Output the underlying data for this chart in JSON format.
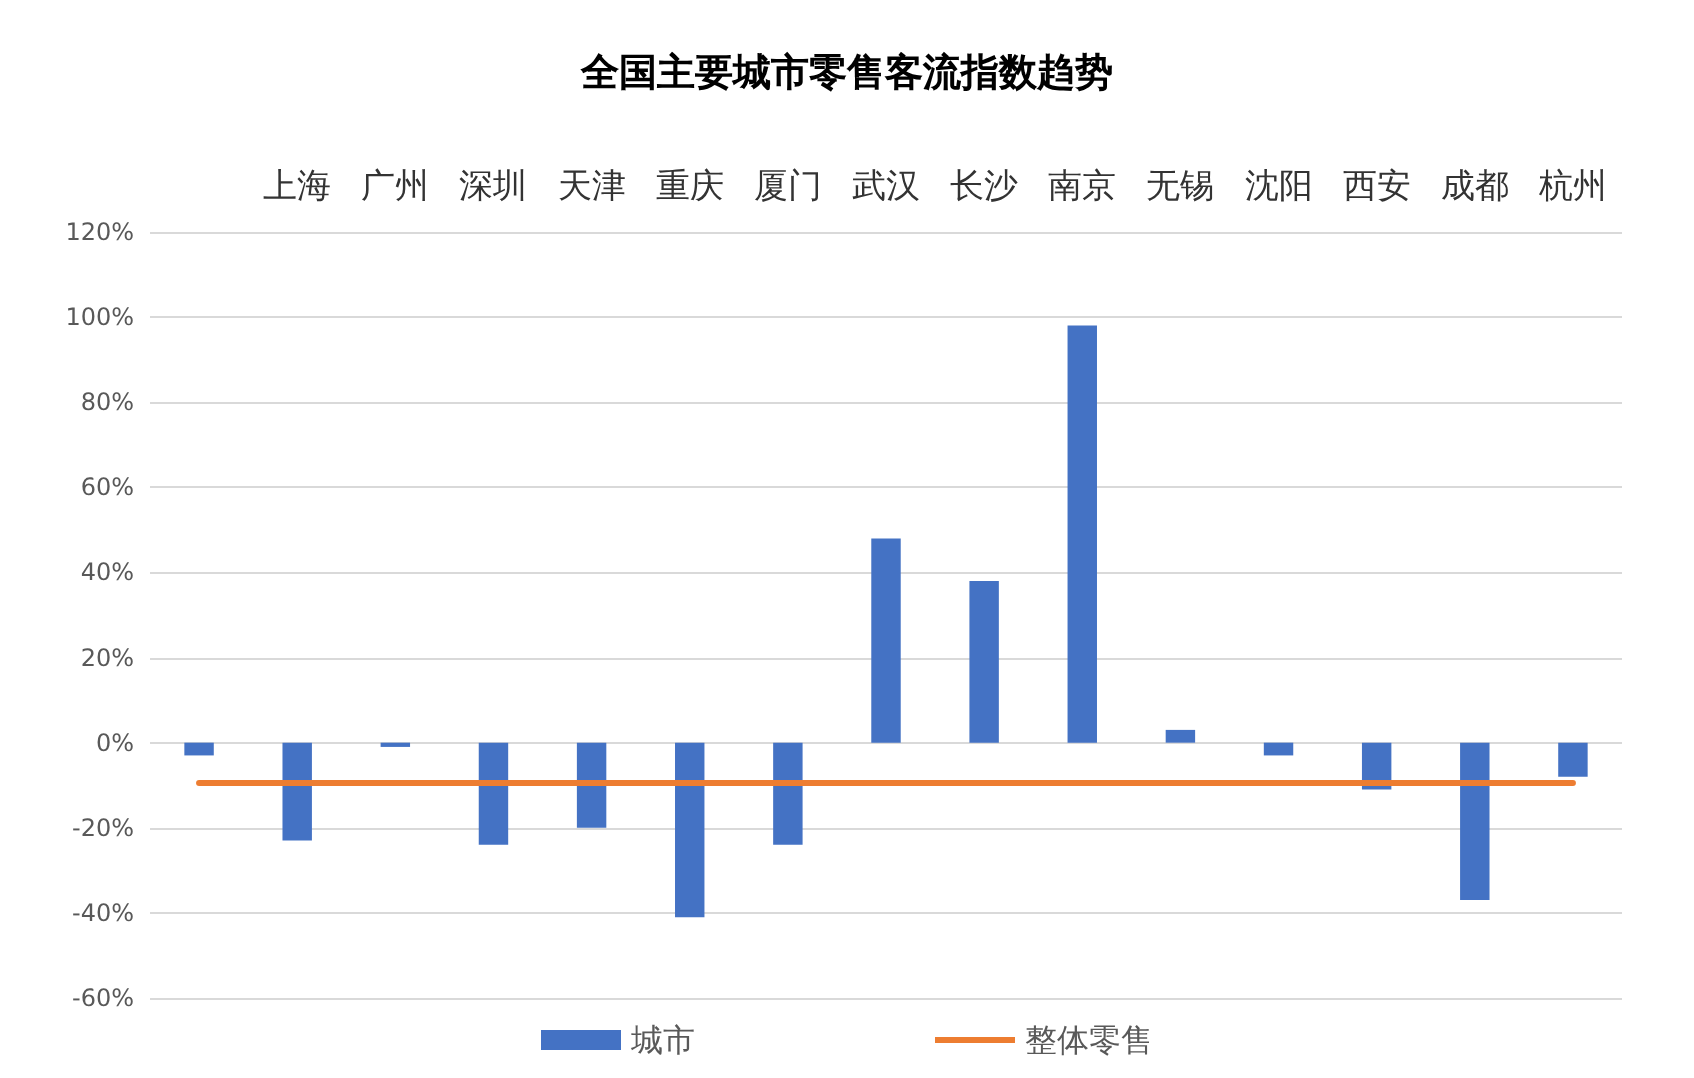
{
  "chart_data": {
    "type": "bar",
    "title": "全国主要城市零售客流指数趋势",
    "categories": [
      null,
      "上海",
      "广州",
      "深圳",
      "天津",
      "重庆",
      "厦门",
      "武汉",
      "长沙",
      "南京",
      "无锡",
      "沈阳",
      "西安",
      "成都",
      "杭州"
    ],
    "series": [
      {
        "name": "城市",
        "color": "#4472c4",
        "values": [
          -3,
          -23,
          -1,
          -24,
          -20,
          -41,
          -24,
          48,
          38,
          98,
          3,
          -3,
          -11,
          -37,
          -8
        ]
      },
      {
        "name": "整体零售",
        "type": "line",
        "color": "#ed7d31",
        "marker": "none",
        "values": [
          -9.5,
          -9.5,
          -9.5,
          -9.5,
          -9.5,
          -9.5,
          -9.5,
          -9.5,
          -9.5,
          -9.5,
          -9.5,
          -9.5,
          -9.5,
          -9.5,
          -9.5
        ]
      }
    ],
    "ylim": [
      -60,
      120
    ],
    "yticks": [
      {
        "value": -60,
        "label": "-60%"
      },
      {
        "value": -40,
        "label": "-40%"
      },
      {
        "value": -20,
        "label": "-20%"
      },
      {
        "value": 0,
        "label": "0%"
      },
      {
        "value": 20,
        "label": "20%"
      },
      {
        "value": 40,
        "label": "40%"
      },
      {
        "value": 60,
        "label": "60%"
      },
      {
        "value": 80,
        "label": "80%"
      },
      {
        "value": 100,
        "label": "100%"
      },
      {
        "value": 120,
        "label": "120%"
      }
    ],
    "grid": "y",
    "legend": "bottom"
  }
}
